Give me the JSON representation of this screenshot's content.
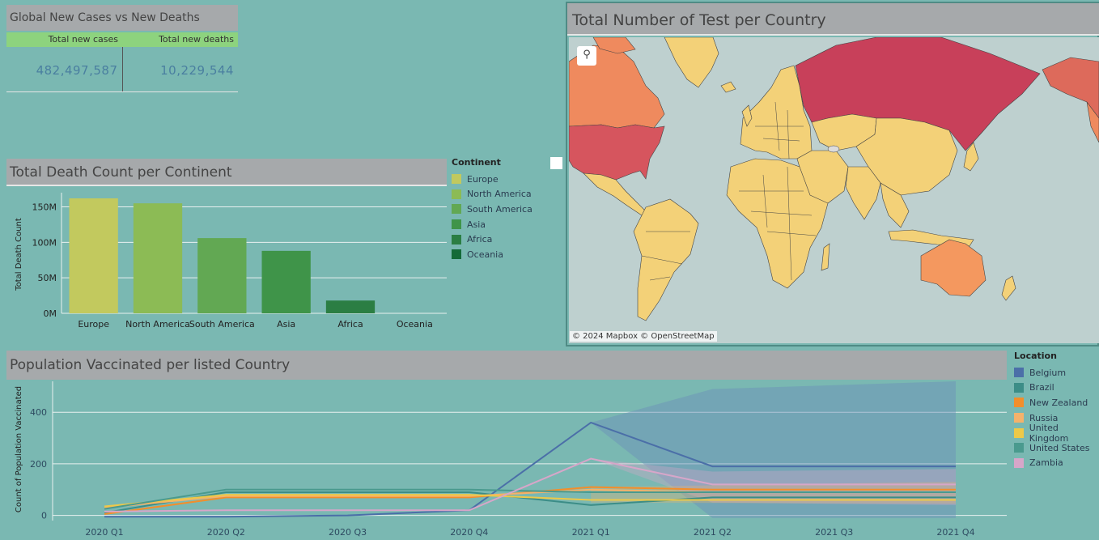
{
  "kpi": {
    "title": "Global New Cases vs New Deaths",
    "cases_label": "Total new cases",
    "deaths_label": "Total new deaths",
    "cases_value": "482,497,587",
    "deaths_value": "10,229,544"
  },
  "bar_panel": {
    "title": "Total Death Count per Continent"
  },
  "map_panel": {
    "title": "Total Number of Test per Country",
    "attribution": "© 2024 Mapbox  © OpenStreetMap",
    "zoom_icon": "search-icon"
  },
  "line_panel": {
    "title": "Population Vaccinated per listed Country"
  },
  "continent_legend": {
    "title": "Continent",
    "items": [
      {
        "label": "Europe",
        "color": "#c2c95e"
      },
      {
        "label": "North America",
        "color": "#8cbb55"
      },
      {
        "label": "South America",
        "color": "#62a853"
      },
      {
        "label": "Asia",
        "color": "#3f9449"
      },
      {
        "label": "Africa",
        "color": "#2b7e43"
      },
      {
        "label": "Oceania",
        "color": "#146a38"
      }
    ]
  },
  "location_legend": {
    "title": "Location",
    "items": [
      {
        "label": "Belgium",
        "color": "#4b6fa8"
      },
      {
        "label": "Brazil",
        "color": "#3c8d87"
      },
      {
        "label": "New Zealand",
        "color": "#f28e2b"
      },
      {
        "label": "Russia",
        "color": "#f4b26b"
      },
      {
        "label": "United Kingdom",
        "color": "#edc948"
      },
      {
        "label": "United States",
        "color": "#4a9a8e"
      },
      {
        "label": "Zambia",
        "color": "#d7a6c9"
      }
    ]
  },
  "chart_data": [
    {
      "type": "bar",
      "title": "Total Death Count per Continent",
      "ylabel": "Total Death Count",
      "xlabel": "",
      "categories": [
        "Europe",
        "North America",
        "South America",
        "Asia",
        "Africa",
        "Oceania"
      ],
      "values": [
        162,
        155,
        106,
        88,
        18,
        0
      ],
      "value_unit": "M",
      "ylim": [
        0,
        170
      ],
      "yticks": [
        0,
        50,
        100,
        150
      ],
      "ytick_labels": [
        "0M",
        "50M",
        "100M",
        "150M"
      ]
    },
    {
      "type": "line",
      "title": "Population Vaccinated per listed Country",
      "ylabel": "Count of Population Vaccinated",
      "xlabel": "",
      "categories": [
        "2020 Q1",
        "2020 Q2",
        "2020 Q3",
        "2020 Q4",
        "2021 Q1",
        "2021 Q2",
        "2021 Q3",
        "2021 Q4"
      ],
      "ylim": [
        -20,
        520
      ],
      "yticks": [
        0,
        200,
        400
      ],
      "series": [
        {
          "name": "Belgium",
          "values": [
            -5,
            -5,
            0,
            20,
            360,
            190,
            190,
            190
          ]
        },
        {
          "name": "Brazil",
          "values": [
            10,
            90,
            90,
            90,
            40,
            70,
            70,
            70
          ]
        },
        {
          "name": "New Zealand",
          "values": [
            5,
            70,
            70,
            70,
            110,
            100,
            100,
            100
          ]
        },
        {
          "name": "Russia",
          "values": [
            30,
            75,
            75,
            75,
            100,
            90,
            90,
            90
          ]
        },
        {
          "name": "United Kingdom",
          "values": [
            35,
            80,
            80,
            80,
            60,
            60,
            60,
            60
          ]
        },
        {
          "name": "United States",
          "values": [
            25,
            100,
            100,
            100,
            90,
            90,
            90,
            90
          ]
        },
        {
          "name": "Zambia",
          "values": [
            15,
            20,
            20,
            20,
            220,
            120,
            120,
            120
          ]
        }
      ]
    }
  ]
}
